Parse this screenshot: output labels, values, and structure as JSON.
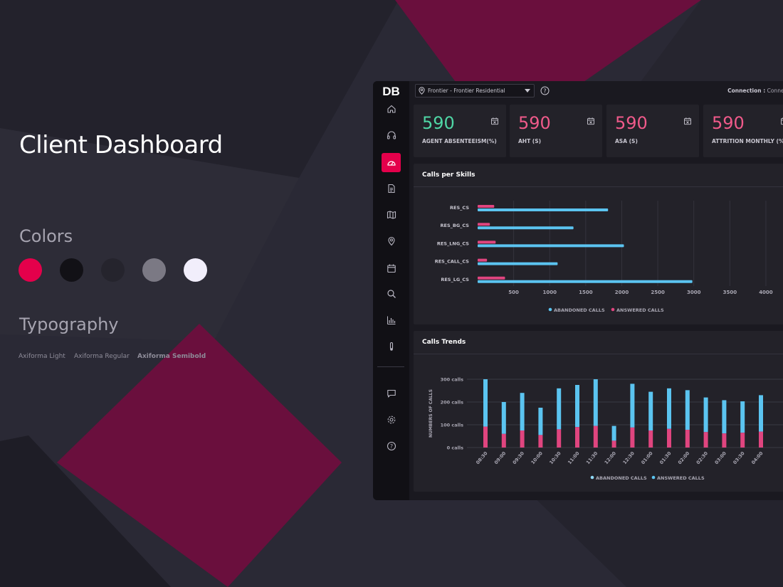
{
  "showcase": {
    "title": "Client Dashboard",
    "colors_label": "Colors",
    "typography_label": "Typography",
    "swatches": [
      "#e4004b",
      "#121116",
      "#25242d",
      "#7b7984",
      "#f1eefb"
    ],
    "fonts": [
      "Axiforma Light",
      "Axiforma Regular",
      "Axiforma Semibold"
    ]
  },
  "app": {
    "logo": "DB",
    "location": "Frontier - Frontier Residential",
    "connection_label": "Connection :",
    "connection_status": "Connected",
    "nav": [
      "home-icon",
      "headphones-icon",
      "gauge-icon",
      "document-icon",
      "map-icon",
      "location-pin-icon",
      "calendar-icon",
      "search-icon",
      "bar-chart-icon",
      "thermometer-icon",
      "chat-icon",
      "settings-icon",
      "help-icon"
    ],
    "active_nav": "gauge-icon",
    "kpis": [
      {
        "value": "590",
        "label": "AGENT ABSENTEEISM(%)",
        "color": "#4fd6a5"
      },
      {
        "value": "590",
        "label": "AHT (S)",
        "color": "#f05a8a"
      },
      {
        "value": "590",
        "label": "ASA (S)",
        "color": "#f05a8a"
      },
      {
        "value": "590",
        "label": "ATTRITION MONTHLY (%)",
        "color": "#f05a8a"
      }
    ]
  },
  "chart_data": [
    {
      "type": "bar",
      "title": "Calls per Skills",
      "orientation": "horizontal",
      "categories": [
        "RES_CS",
        "RES_BG_CS",
        "RES_LNG_CS",
        "RES_CALL_CS",
        "RES_LG_CS"
      ],
      "series": [
        {
          "name": "ANSWERED CALLS",
          "color": "#e0457f",
          "values": [
            230,
            170,
            250,
            130,
            380
          ]
        },
        {
          "name": "ABANDONED CALLS",
          "color": "#5bc4f0",
          "values": [
            1810,
            1330,
            2030,
            1110,
            2980
          ]
        }
      ],
      "xticks": [
        500,
        1000,
        1500,
        2000,
        2500,
        3000,
        3500,
        4000
      ],
      "xlim": [
        0,
        4050
      ],
      "legend": [
        "ABANDONED CALLS",
        "ANSWERED CALLS"
      ],
      "grid": true
    },
    {
      "type": "bar",
      "title": "Calls Trends",
      "stacked": true,
      "categories": [
        "08:30",
        "09:00",
        "09:30",
        "10:00",
        "10:30",
        "11:00",
        "11:30",
        "12:00",
        "12:30",
        "01:00",
        "01:30",
        "02:00",
        "02:30",
        "03:00",
        "03:30",
        "04:00"
      ],
      "series": [
        {
          "name": "ANSWERED CALLS",
          "color": "#e0457f",
          "values": [
            92,
            60,
            75,
            55,
            80,
            90,
            95,
            30,
            88,
            75,
            82,
            78,
            68,
            62,
            65,
            70
          ]
        },
        {
          "name": "ABANDONED CALLS",
          "color": "#5bc4f0",
          "values": [
            208,
            140,
            165,
            120,
            180,
            185,
            205,
            65,
            192,
            170,
            178,
            174,
            152,
            146,
            138,
            160
          ]
        }
      ],
      "ylabel": "NUMBERS OF CALLS",
      "yticks": [
        "0 calls",
        "100 calls",
        "200 calls",
        "300 calls"
      ],
      "ylim": [
        0,
        300
      ],
      "legend": [
        "ABANDONED CALLS",
        "ANSWERED CALLS"
      ],
      "grid": true
    }
  ]
}
